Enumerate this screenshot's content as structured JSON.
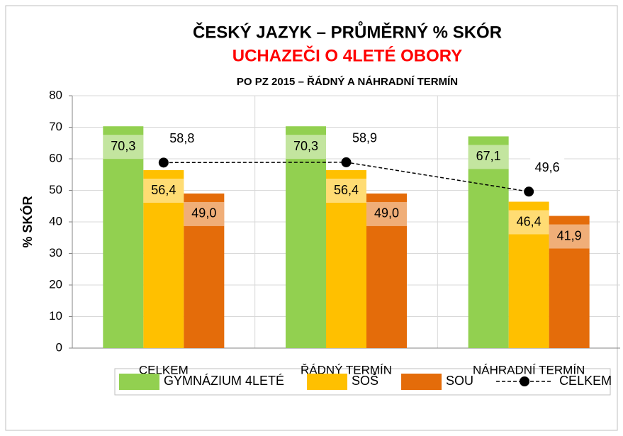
{
  "chart_data": {
    "type": "bar",
    "title": "ČESKÝ JAZYK – PRŮMĚRNÝ % SKÓR",
    "subtitles": [
      "UCHAZEČI O 4LETÉ OBORY",
      "PO PZ 2015 – ŘÁDNÝ A NÁHRADNÍ TERMÍN"
    ],
    "subtitle_colors": [
      "#ff0000",
      "#000000"
    ],
    "y_label": "% SKÓR",
    "categories": [
      "CELKEM",
      "ŘÁDNÝ TERMÍN",
      "NÁHRADNÍ TERMÍN"
    ],
    "series": [
      {
        "name": "GYMNÁZIUM 4LETÉ",
        "color": "#92d050",
        "values": [
          70.3,
          70.3,
          67.1
        ],
        "value_labels": [
          "70,3",
          "70,3",
          "67,1"
        ]
      },
      {
        "name": "SOŠ",
        "color": "#ffc000",
        "values": [
          56.4,
          56.4,
          46.4
        ],
        "value_labels": [
          "56,4",
          "56,4",
          "46,4"
        ]
      },
      {
        "name": "SOU",
        "color": "#e46c0a",
        "values": [
          49.0,
          49.0,
          41.9
        ],
        "value_labels": [
          "49,0",
          "49,0",
          "41,9"
        ]
      },
      {
        "name": "CELKEM",
        "type": "line",
        "color": "#000000",
        "values": [
          58.8,
          58.9,
          49.6
        ],
        "value_labels": [
          "58,8",
          "58,9",
          "49,6"
        ]
      }
    ],
    "ylim": [
      0,
      80
    ],
    "yticks": [
      0,
      10,
      20,
      30,
      40,
      50,
      60,
      70,
      80
    ],
    "grid": true,
    "legend": "bottom"
  }
}
